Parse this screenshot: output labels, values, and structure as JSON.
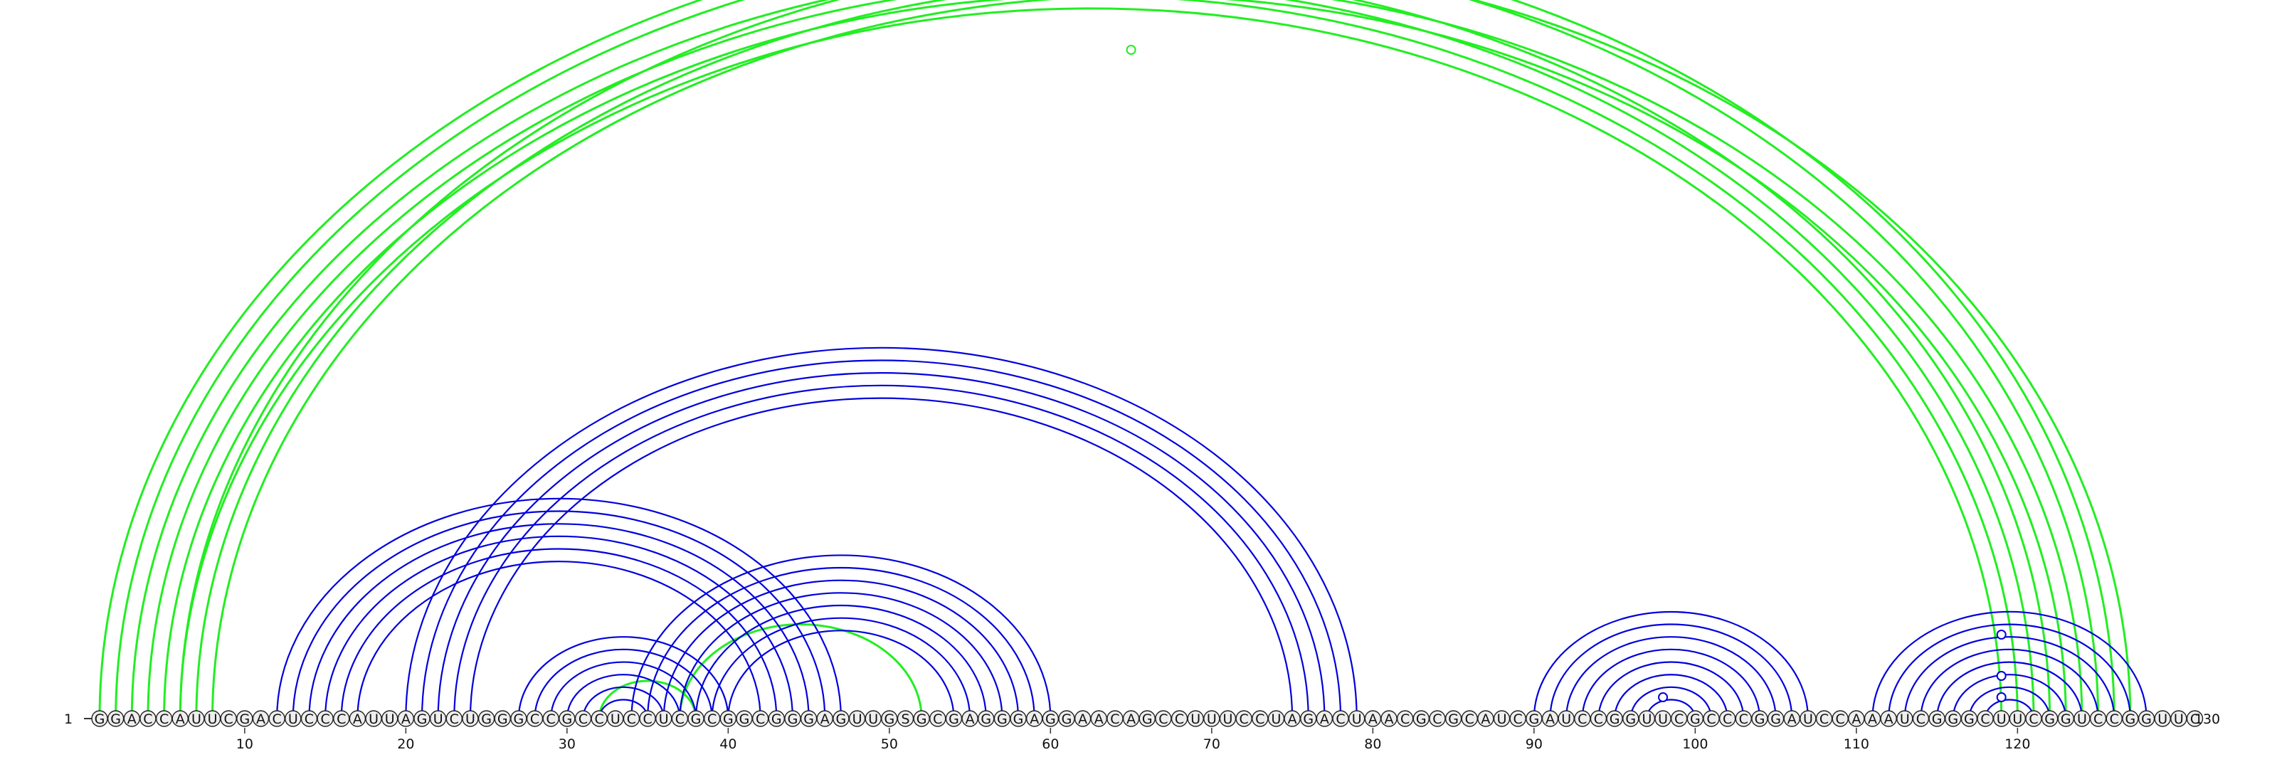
{
  "sequence": "GGACCAUUCGACUCCCAUUAGUCUGGGCCGCCUCCUCGCGGCGGGAGUUGSGCGAGGGAGGAACAGCCUUUCCUAGACUAACGCGCAUCGAUCCGGUUCGCCCGGAUCCAAAUCGGGCUUCGGUCCGGUUC",
  "length": 130,
  "start_label": "1",
  "end_label": "130",
  "tick_positions": [
    10,
    20,
    30,
    40,
    50,
    60,
    70,
    80,
    90,
    100,
    110,
    120
  ],
  "tick_labels": [
    "10",
    "20",
    "30",
    "40",
    "50",
    "60",
    "70",
    "80",
    "90",
    "100",
    "110",
    "120"
  ],
  "colors": {
    "lower_arcs": "#0000dd",
    "upper_arcs": "#22ee22",
    "nucleotide_fill": "#eeeeee",
    "nucleotide_stroke": "#222222",
    "text": "#111111"
  },
  "arc_groups": [
    {
      "name": "long-range-green",
      "color": "upper",
      "pairs": [
        [
          1,
          126
        ],
        [
          2,
          125
        ],
        [
          3,
          122
        ],
        [
          4,
          121
        ],
        [
          5,
          120
        ],
        [
          6,
          119
        ]
      ]
    },
    {
      "name": "outer-green-pair",
      "color": "upper",
      "pairs": [
        [
          6,
          127
        ],
        [
          7,
          124
        ],
        [
          8,
          123
        ]
      ]
    },
    {
      "name": "small-green-loop",
      "color": "upper",
      "pairs": [
        [
          32,
          38
        ],
        [
          37,
          52
        ]
      ]
    },
    {
      "name": "blue-stem-12-45",
      "color": "lower",
      "pairs": [
        [
          12,
          47
        ],
        [
          13,
          46
        ],
        [
          14,
          45
        ],
        [
          15,
          44
        ],
        [
          16,
          43
        ],
        [
          17,
          42
        ]
      ]
    },
    {
      "name": "blue-stem-20-78",
      "color": "lower",
      "pairs": [
        [
          20,
          79
        ],
        [
          21,
          78
        ],
        [
          22,
          77
        ],
        [
          23,
          76
        ],
        [
          24,
          75
        ]
      ]
    },
    {
      "name": "blue-stem-27-40",
      "color": "lower",
      "pairs": [
        [
          27,
          40
        ],
        [
          28,
          39
        ],
        [
          29,
          38
        ],
        [
          30,
          37
        ],
        [
          31,
          36
        ],
        [
          32,
          35
        ]
      ]
    },
    {
      "name": "blue-stem-35-60",
      "color": "lower",
      "pairs": [
        [
          34,
          60
        ],
        [
          35,
          59
        ],
        [
          36,
          58
        ],
        [
          37,
          57
        ],
        [
          38,
          56
        ],
        [
          39,
          55
        ],
        [
          40,
          54
        ]
      ]
    },
    {
      "name": "blue-stem-90-107",
      "color": "lower",
      "pairs": [
        [
          90,
          107
        ],
        [
          91,
          106
        ],
        [
          92,
          105
        ],
        [
          93,
          104
        ],
        [
          94,
          103
        ],
        [
          95,
          102
        ],
        [
          96,
          101
        ],
        [
          97,
          100
        ]
      ]
    },
    {
      "name": "blue-stem-111-128",
      "color": "lower",
      "pairs": [
        [
          111,
          128
        ],
        [
          112,
          127
        ],
        [
          113,
          126
        ],
        [
          114,
          125
        ],
        [
          115,
          124
        ],
        [
          116,
          123
        ],
        [
          117,
          122
        ],
        [
          118,
          121
        ]
      ]
    }
  ],
  "open_markers": [
    {
      "position": 65,
      "on": "upper"
    },
    {
      "position": 98,
      "on": "lower"
    },
    {
      "position": 119,
      "on": "lower"
    },
    {
      "position": 119,
      "on": "lower"
    },
    {
      "position": 119,
      "on": "lower"
    }
  ]
}
